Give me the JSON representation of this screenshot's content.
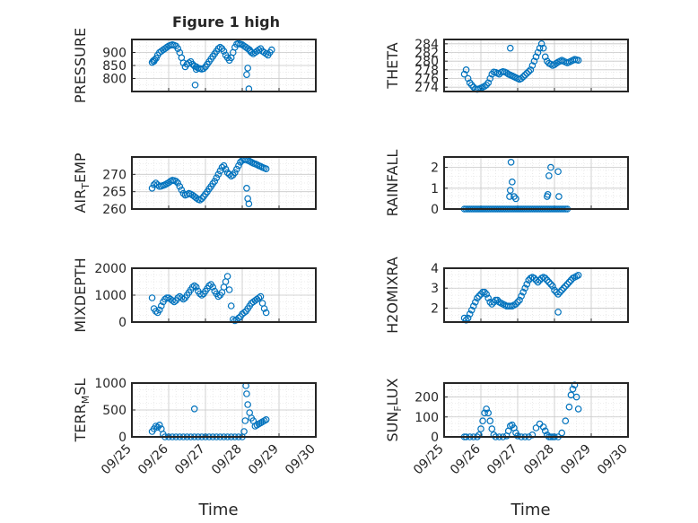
{
  "figure": {
    "title": "Figure 1 high",
    "marker_color": "#0072BD",
    "axis_color": "#262626",
    "grid_color": "#dddddd"
  },
  "chart_data": [
    {
      "type": "scatter",
      "ylabel": "PRESSURE",
      "xlabel": "",
      "title": "Figure 1 high",
      "xlim": [
        0,
        5
      ],
      "ylim": [
        750,
        950
      ],
      "yticks": [
        800,
        850,
        900
      ],
      "xticks": [
        0,
        1,
        2,
        3,
        4,
        5
      ],
      "xtick_labels": [
        "",
        "",
        "",
        "",
        "",
        ""
      ],
      "x": [
        0.55,
        0.58,
        0.6,
        0.62,
        0.66,
        0.7,
        0.75,
        0.8,
        0.85,
        0.9,
        0.95,
        1.0,
        1.05,
        1.1,
        1.15,
        1.2,
        1.25,
        1.3,
        1.35,
        1.4,
        1.45,
        1.5,
        1.55,
        1.6,
        1.65,
        1.7,
        1.75,
        1.8,
        1.85,
        1.9,
        1.95,
        2.0,
        2.05,
        2.1,
        2.15,
        2.2,
        2.25,
        2.3,
        2.35,
        2.4,
        2.45,
        2.5,
        2.55,
        2.6,
        2.65,
        2.7,
        2.75,
        2.8,
        2.85,
        2.9,
        2.95,
        3.0,
        3.05,
        3.1,
        3.15,
        3.2,
        3.22,
        3.25,
        3.3,
        3.35,
        3.4,
        3.45,
        3.5,
        3.55,
        3.6,
        3.65,
        3.7,
        3.75,
        3.8,
        1.72,
        1.75,
        3.12,
        3.15,
        3.18
      ],
      "y": [
        862,
        868,
        866,
        872,
        878,
        890,
        900,
        905,
        910,
        915,
        920,
        925,
        928,
        930,
        928,
        925,
        915,
        900,
        880,
        860,
        845,
        855,
        860,
        865,
        855,
        848,
        845,
        840,
        838,
        836,
        838,
        845,
        855,
        865,
        875,
        885,
        895,
        905,
        915,
        920,
        915,
        905,
        890,
        880,
        870,
        880,
        900,
        920,
        932,
        935,
        932,
        930,
        925,
        920,
        915,
        910,
        905,
        900,
        895,
        900,
        905,
        910,
        915,
        905,
        900,
        895,
        890,
        900,
        910,
        775,
        835,
        815,
        840,
        760
      ]
    },
    {
      "type": "scatter",
      "ylabel": "THETA",
      "xlabel": "",
      "xlim": [
        0,
        5
      ],
      "ylim": [
        273,
        285
      ],
      "yticks": [
        274,
        276,
        278,
        280,
        282,
        284
      ],
      "xticks": [
        0,
        1,
        2,
        3,
        4,
        5
      ],
      "xtick_labels": [
        "",
        "",
        "",
        "",
        "",
        ""
      ],
      "x": [
        0.55,
        0.6,
        0.65,
        0.7,
        0.75,
        0.8,
        0.85,
        0.9,
        0.95,
        1.0,
        1.05,
        1.1,
        1.15,
        1.2,
        1.25,
        1.3,
        1.35,
        1.4,
        1.45,
        1.5,
        1.55,
        1.6,
        1.65,
        1.7,
        1.75,
        1.8,
        1.85,
        1.9,
        1.95,
        2.0,
        2.05,
        2.1,
        2.15,
        2.2,
        2.25,
        2.3,
        2.35,
        2.4,
        2.45,
        2.5,
        2.55,
        2.6,
        2.65,
        2.7,
        2.75,
        2.8,
        2.85,
        2.9,
        2.95,
        3.0,
        3.05,
        3.1,
        3.15,
        3.2,
        3.25,
        3.3,
        3.35,
        3.4,
        3.45,
        3.5,
        3.55,
        3.6,
        3.65,
        1.8
      ],
      "y": [
        277,
        278,
        276,
        275,
        274.5,
        274,
        273.6,
        273.5,
        273.6,
        273.8,
        274,
        274.2,
        274.5,
        275,
        276,
        277,
        277.5,
        277.4,
        277.2,
        277,
        277.4,
        277.6,
        277.5,
        277.3,
        277,
        276.8,
        276.6,
        276.4,
        276.2,
        276,
        275.8,
        276,
        276.4,
        276.8,
        277.2,
        277.6,
        278,
        279,
        280,
        281,
        282,
        283,
        284,
        283,
        281,
        280,
        279.5,
        279.3,
        279,
        279.2,
        279.5,
        279.8,
        280,
        280.2,
        280,
        279.8,
        279.6,
        279.8,
        280,
        280.2,
        280.4,
        280.3,
        280.2,
        283
      ]
    },
    {
      "type": "scatter",
      "ylabel": "AIR_TEMP",
      "xlabel": "",
      "xlim": [
        0,
        5
      ],
      "ylim": [
        260,
        275
      ],
      "yticks": [
        260,
        265,
        270
      ],
      "xticks": [
        0,
        1,
        2,
        3,
        4,
        5
      ],
      "xtick_labels": [
        "",
        "",
        "",
        "",
        "",
        ""
      ],
      "x": [
        0.55,
        0.6,
        0.65,
        0.7,
        0.75,
        0.8,
        0.85,
        0.9,
        0.95,
        1.0,
        1.05,
        1.1,
        1.15,
        1.2,
        1.25,
        1.3,
        1.35,
        1.4,
        1.45,
        1.5,
        1.55,
        1.6,
        1.65,
        1.7,
        1.75,
        1.8,
        1.85,
        1.9,
        1.95,
        2.0,
        2.05,
        2.1,
        2.15,
        2.2,
        2.25,
        2.3,
        2.35,
        2.4,
        2.45,
        2.5,
        2.55,
        2.6,
        2.65,
        2.7,
        2.75,
        2.8,
        2.85,
        2.9,
        2.95,
        3.0,
        3.05,
        3.1,
        3.15,
        3.2,
        3.25,
        3.3,
        3.35,
        3.4,
        3.45,
        3.5,
        3.55,
        3.6,
        3.65,
        3.12,
        3.15,
        3.18
      ],
      "y": [
        266,
        267,
        267.5,
        267,
        266.5,
        266.6,
        266.8,
        267,
        267.3,
        267.6,
        268,
        268.3,
        268.2,
        268,
        267.5,
        266.5,
        265.5,
        264.5,
        264,
        264.2,
        264.5,
        264.3,
        264,
        263.6,
        263.2,
        262.8,
        262.6,
        263,
        263.6,
        264.3,
        265,
        265.8,
        266.5,
        267.3,
        268,
        269,
        270,
        271,
        272,
        272.5,
        271.5,
        270.5,
        270,
        269.5,
        269.8,
        270.5,
        271.5,
        272.5,
        273.5,
        274,
        274.2,
        274.3,
        274,
        273.8,
        273.5,
        273.2,
        273,
        272.8,
        272.5,
        272.3,
        272,
        271.8,
        271.6,
        266,
        263,
        261.5
      ]
    },
    {
      "type": "scatter",
      "ylabel": "RAINFALL",
      "xlabel": "",
      "xlim": [
        0,
        5
      ],
      "ylim": [
        0,
        2.5
      ],
      "yticks": [
        0,
        1,
        2
      ],
      "xticks": [
        0,
        1,
        2,
        3,
        4,
        5
      ],
      "xtick_labels": [
        "",
        "",
        "",
        "",
        "",
        ""
      ],
      "x": [
        0.55,
        0.6,
        0.65,
        0.7,
        0.75,
        0.8,
        0.85,
        0.9,
        0.95,
        1.0,
        1.05,
        1.1,
        1.15,
        1.2,
        1.25,
        1.3,
        1.35,
        1.4,
        1.45,
        1.5,
        1.55,
        1.6,
        1.65,
        1.7,
        1.75,
        1.8,
        1.85,
        1.9,
        1.95,
        2.0,
        2.05,
        2.1,
        2.15,
        2.2,
        2.25,
        2.3,
        2.35,
        2.4,
        2.45,
        2.5,
        2.55,
        2.6,
        2.65,
        2.7,
        2.75,
        2.8,
        2.85,
        2.9,
        2.95,
        3.0,
        3.05,
        3.1,
        3.15,
        3.2,
        3.25,
        3.3,
        3.35,
        1.78,
        1.8,
        1.82,
        1.85,
        1.9,
        1.95,
        2.8,
        2.82,
        2.85,
        2.9,
        3.1,
        3.12
      ],
      "y": [
        0,
        0,
        0,
        0,
        0,
        0,
        0,
        0,
        0,
        0,
        0,
        0,
        0,
        0,
        0,
        0,
        0,
        0,
        0,
        0,
        0,
        0,
        0,
        0,
        0,
        0,
        0,
        0,
        0,
        0,
        0,
        0,
        0,
        0,
        0,
        0,
        0,
        0,
        0,
        0,
        0,
        0,
        0,
        0,
        0,
        0,
        0,
        0,
        0,
        0,
        0,
        0,
        0,
        0,
        0,
        0,
        0,
        0.6,
        0.9,
        2.25,
        1.3,
        0.6,
        0.5,
        0.6,
        0.7,
        1.6,
        2.0,
        1.8,
        0.6
      ]
    },
    {
      "type": "scatter",
      "ylabel": "MIXDEPTH",
      "xlabel": "",
      "xlim": [
        0,
        5
      ],
      "ylim": [
        0,
        2000
      ],
      "yticks": [
        0,
        1000,
        2000
      ],
      "xticks": [
        0,
        1,
        2,
        3,
        4,
        5
      ],
      "xtick_labels": [
        "",
        "",
        "",
        "",
        "",
        ""
      ],
      "x": [
        0.55,
        0.6,
        0.65,
        0.7,
        0.75,
        0.8,
        0.85,
        0.9,
        0.95,
        1.0,
        1.05,
        1.1,
        1.15,
        1.2,
        1.25,
        1.3,
        1.35,
        1.4,
        1.45,
        1.5,
        1.55,
        1.6,
        1.65,
        1.7,
        1.75,
        1.8,
        1.85,
        1.9,
        1.95,
        2.0,
        2.05,
        2.1,
        2.15,
        2.2,
        2.25,
        2.3,
        2.35,
        2.4,
        2.45,
        2.5,
        2.55,
        2.6,
        2.65,
        2.7,
        2.75,
        2.8,
        2.85,
        2.9,
        2.95,
        3.0,
        3.05,
        3.1,
        3.15,
        3.2,
        3.25,
        3.3,
        3.35,
        3.4,
        3.45,
        3.5,
        3.55,
        3.6,
        3.65
      ],
      "y": [
        900,
        500,
        400,
        350,
        450,
        600,
        750,
        850,
        900,
        900,
        850,
        800,
        750,
        800,
        900,
        950,
        900,
        850,
        900,
        1000,
        1100,
        1200,
        1300,
        1350,
        1300,
        1150,
        1050,
        1000,
        1050,
        1150,
        1250,
        1350,
        1400,
        1300,
        1150,
        1050,
        950,
        1000,
        1100,
        1300,
        1500,
        1700,
        1200,
        600,
        100,
        50,
        80,
        150,
        200,
        300,
        350,
        400,
        500,
        600,
        700,
        750,
        800,
        850,
        900,
        950,
        700,
        500,
        350
      ]
    },
    {
      "type": "scatter",
      "ylabel": "H2OMIXRA",
      "xlabel": "",
      "xlim": [
        0,
        5
      ],
      "ylim": [
        1.3,
        4
      ],
      "yticks": [
        2,
        3,
        4
      ],
      "xticks": [
        0,
        1,
        2,
        3,
        4,
        5
      ],
      "xtick_labels": [
        "",
        "",
        "",
        "",
        "",
        ""
      ],
      "x": [
        0.55,
        0.6,
        0.65,
        0.7,
        0.75,
        0.8,
        0.85,
        0.9,
        0.95,
        1.0,
        1.05,
        1.1,
        1.15,
        1.2,
        1.25,
        1.3,
        1.35,
        1.4,
        1.45,
        1.5,
        1.55,
        1.6,
        1.65,
        1.7,
        1.75,
        1.8,
        1.85,
        1.9,
        1.95,
        2.0,
        2.05,
        2.1,
        2.15,
        2.2,
        2.25,
        2.3,
        2.35,
        2.4,
        2.45,
        2.5,
        2.55,
        2.6,
        2.65,
        2.7,
        2.75,
        2.8,
        2.85,
        2.9,
        2.95,
        3.0,
        3.05,
        3.1,
        3.15,
        3.2,
        3.25,
        3.3,
        3.35,
        3.4,
        3.45,
        3.5,
        3.55,
        3.6,
        3.65,
        3.1
      ],
      "y": [
        1.5,
        1.4,
        1.5,
        1.7,
        1.9,
        2.1,
        2.3,
        2.5,
        2.6,
        2.7,
        2.8,
        2.8,
        2.7,
        2.5,
        2.3,
        2.2,
        2.3,
        2.4,
        2.4,
        2.3,
        2.25,
        2.2,
        2.15,
        2.1,
        2.1,
        2.1,
        2.1,
        2.15,
        2.2,
        2.3,
        2.4,
        2.6,
        2.8,
        3.0,
        3.2,
        3.4,
        3.5,
        3.55,
        3.5,
        3.4,
        3.3,
        3.4,
        3.5,
        3.55,
        3.5,
        3.4,
        3.3,
        3.2,
        3.1,
        2.9,
        2.8,
        2.7,
        2.8,
        2.9,
        3.0,
        3.1,
        3.2,
        3.3,
        3.4,
        3.5,
        3.55,
        3.6,
        3.65,
        1.8
      ]
    },
    {
      "type": "scatter",
      "ylabel": "TERR_MSL",
      "xlabel": "Time",
      "xlim": [
        0,
        5
      ],
      "ylim": [
        0,
        1000
      ],
      "yticks": [
        0,
        500,
        1000
      ],
      "xticks": [
        0,
        1,
        2,
        3,
        4,
        5
      ],
      "xtick_labels": [
        "09/25",
        "09/26",
        "09/27",
        "09/28",
        "09/29",
        "09/30"
      ],
      "x": [
        0.55,
        0.6,
        0.65,
        0.7,
        0.75,
        0.8,
        0.85,
        0.9,
        1.0,
        1.1,
        1.2,
        1.3,
        1.4,
        1.5,
        1.6,
        1.7,
        1.8,
        1.9,
        2.0,
        2.1,
        2.2,
        2.3,
        2.4,
        2.5,
        2.6,
        2.7,
        2.8,
        2.9,
        3.0,
        3.05,
        3.08,
        3.1,
        3.12,
        3.15,
        3.2,
        3.25,
        3.3,
        3.35,
        3.4,
        3.45,
        3.5,
        3.55,
        3.6,
        3.65,
        1.7
      ],
      "y": [
        100,
        150,
        200,
        180,
        220,
        150,
        50,
        0,
        0,
        0,
        0,
        0,
        0,
        0,
        0,
        0,
        0,
        0,
        0,
        0,
        0,
        0,
        0,
        0,
        0,
        0,
        0,
        0,
        0,
        100,
        300,
        950,
        800,
        600,
        450,
        350,
        300,
        200,
        220,
        240,
        260,
        280,
        300,
        320,
        520
      ]
    },
    {
      "type": "scatter",
      "ylabel": "SUN_FLUX",
      "xlabel": "Time",
      "xlim": [
        0,
        5
      ],
      "ylim": [
        0,
        270
      ],
      "yticks": [
        0,
        100,
        200
      ],
      "xticks": [
        0,
        1,
        2,
        3,
        4,
        5
      ],
      "xtick_labels": [
        "09/25",
        "09/26",
        "09/27",
        "09/28",
        "09/29",
        "09/30"
      ],
      "x": [
        0.55,
        0.6,
        0.7,
        0.8,
        0.9,
        0.95,
        1.0,
        1.05,
        1.1,
        1.15,
        1.2,
        1.25,
        1.3,
        1.35,
        1.4,
        1.5,
        1.6,
        1.7,
        1.75,
        1.8,
        1.85,
        1.9,
        1.95,
        2.0,
        2.1,
        2.2,
        2.3,
        2.4,
        2.5,
        2.6,
        2.7,
        2.75,
        2.8,
        2.85,
        2.9,
        2.95,
        3.0,
        3.1,
        3.2,
        3.3,
        3.4,
        3.45,
        3.5,
        3.55,
        3.6,
        3.65
      ],
      "y": [
        0,
        0,
        0,
        0,
        0,
        10,
        40,
        80,
        120,
        140,
        120,
        80,
        40,
        10,
        0,
        0,
        0,
        5,
        30,
        55,
        60,
        45,
        20,
        5,
        0,
        0,
        0,
        10,
        45,
        65,
        50,
        30,
        10,
        0,
        0,
        0,
        0,
        0,
        20,
        80,
        150,
        210,
        240,
        260,
        200,
        140
      ]
    }
  ]
}
